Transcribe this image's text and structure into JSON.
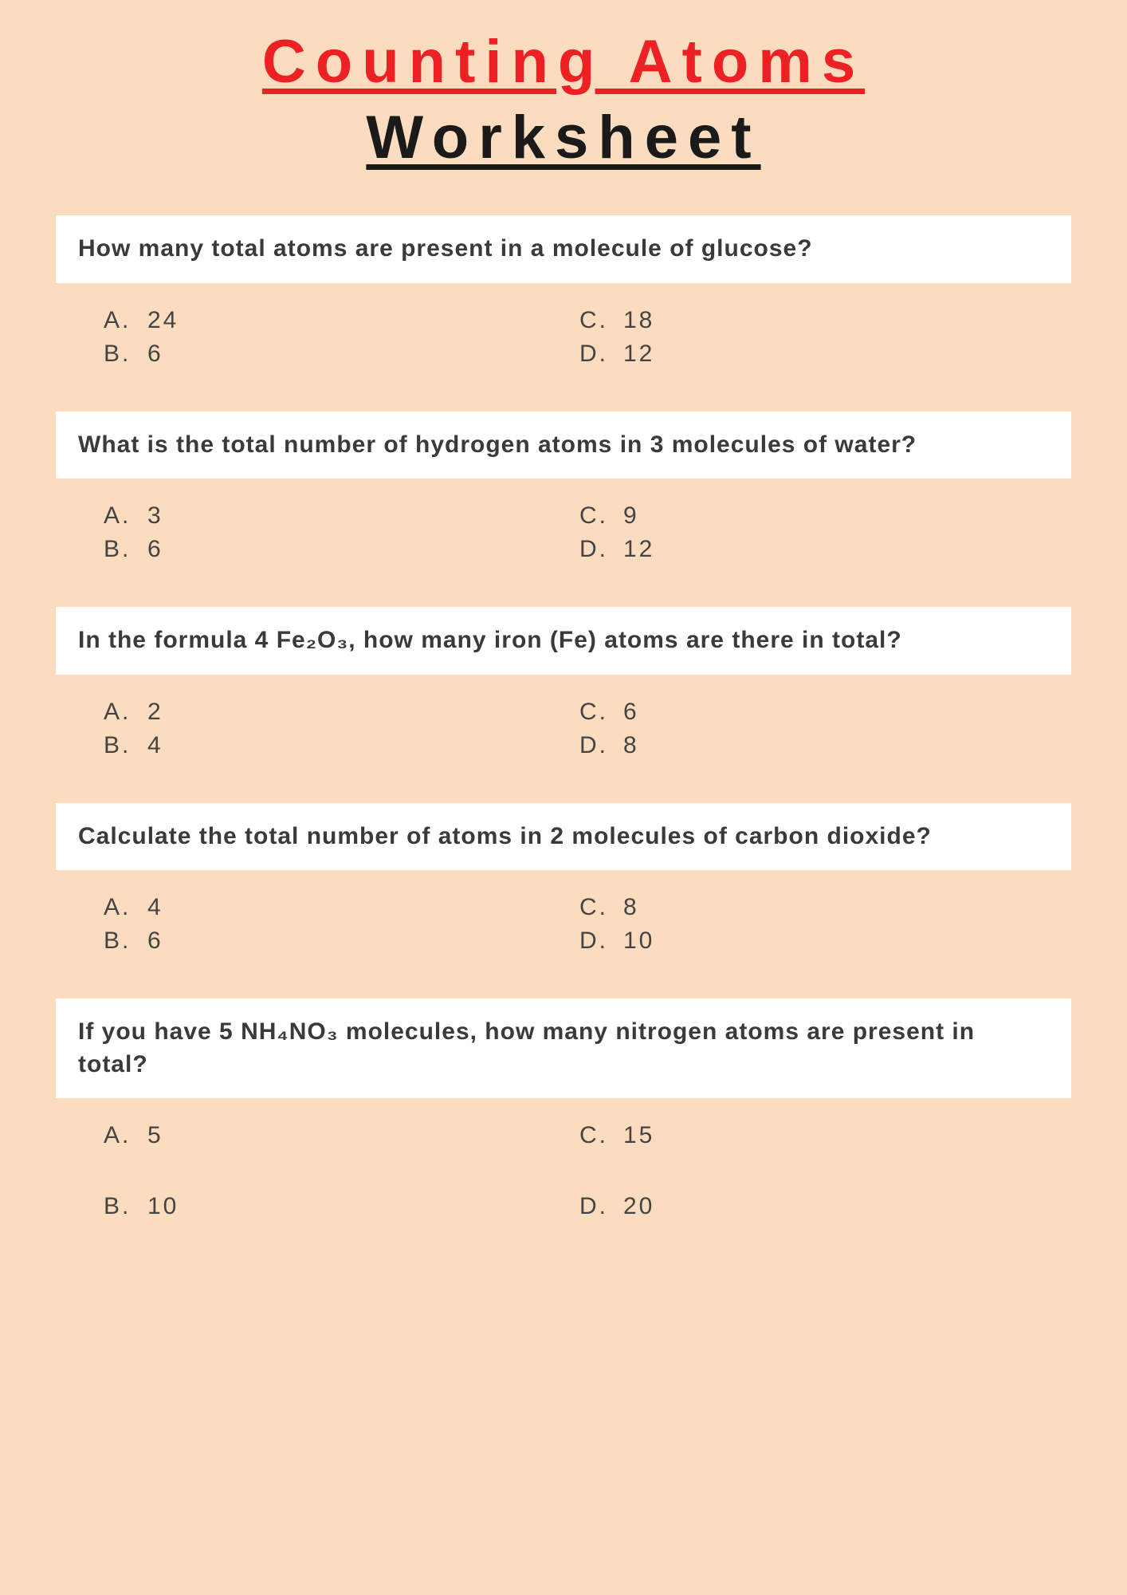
{
  "title": {
    "line1": "Counting Atoms",
    "line2": "Worksheet",
    "line1_color": "#ed2024",
    "line2_color": "#1a1a1a"
  },
  "background_color": "#fcdcbf",
  "question_bg": "#ffffff",
  "text_color": "#3a3a3a",
  "questions": [
    {
      "text": "How many total atoms are present in a molecule of glucose?",
      "justify": false,
      "choices": {
        "A": "24",
        "B": "6",
        "C": "18",
        "D": "12"
      }
    },
    {
      "text": "What is the total number of hydrogen atoms in 3 molecules of water?",
      "justify": true,
      "choices": {
        "A": "3",
        "B": "6",
        "C": "9",
        "D": "12"
      }
    },
    {
      "text": "In the formula 4 Fe₂O₃, how many iron (Fe) atoms are there in total?",
      "justify": false,
      "choices": {
        "A": "2",
        "B": "4",
        "C": "6",
        "D": "8"
      }
    },
    {
      "text": "Calculate the total number of atoms in 2 molecules of carbon dioxide?",
      "justify": false,
      "choices": {
        "A": "4",
        "B": "6",
        "C": "8",
        "D": "10"
      }
    },
    {
      "text": "If you have 5 NH₄NO₃ molecules, how many nitrogen atoms are present in total?",
      "justify": false,
      "choices": {
        "A": "5",
        "B": "10",
        "C": "15",
        "D": "20"
      }
    }
  ],
  "choice_letters": {
    "A": "A.",
    "B": "B.",
    "C": "C.",
    "D": "D."
  }
}
